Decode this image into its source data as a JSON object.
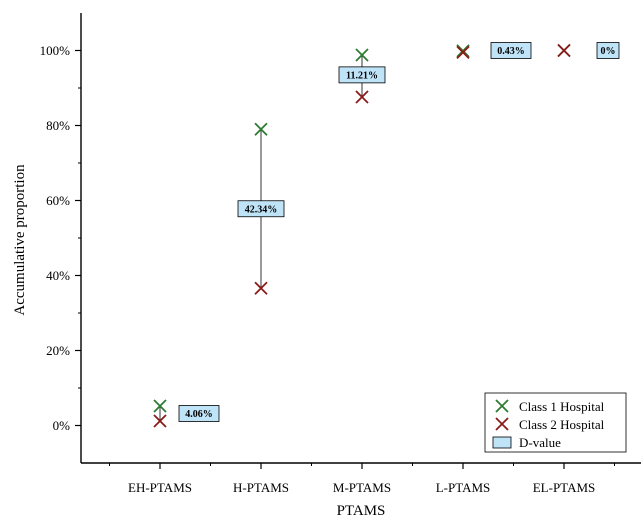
{
  "chart_data": {
    "type": "scatter",
    "title": "",
    "xlabel": "PTAMS",
    "ylabel": "Accumulative proportion",
    "categories": [
      "EH-PTAMS",
      "H-PTAMS",
      "M-PTAMS",
      "L-PTAMS",
      "EL-PTAMS"
    ],
    "ylim": [
      -10,
      110
    ],
    "yticks": [
      0,
      20,
      40,
      60,
      80,
      100
    ],
    "ytick_labels": [
      "0%",
      "20%",
      "40%",
      "60%",
      "80%",
      "100%"
    ],
    "series": [
      {
        "name": "Class 1 Hospital",
        "color": "#2e7d32",
        "marker": "x",
        "values": [
          5.2,
          79,
          98.8,
          99.9,
          100
        ]
      },
      {
        "name": "Class 2 Hospital",
        "color": "#8b1a1a",
        "marker": "x",
        "values": [
          1.2,
          36.6,
          87.6,
          99.5,
          100
        ]
      }
    ],
    "d_value": {
      "name": "D-value",
      "fill": "#bfe3f7",
      "labels": [
        "4.06%",
        "42.34%",
        "11.21%",
        "0.43%",
        "0%"
      ]
    },
    "legend_position": "bottom-right",
    "grid": false
  }
}
